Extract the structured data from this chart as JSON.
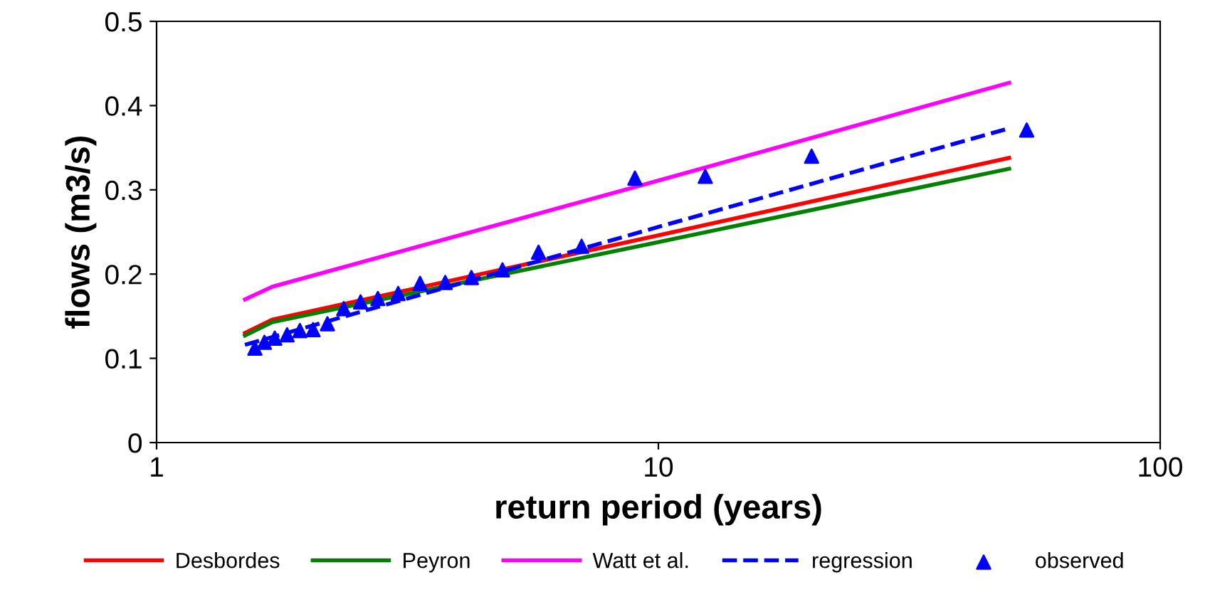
{
  "chart_data": {
    "type": "line",
    "xlabel": "return period (years)",
    "ylabel": "flows (m3/s)",
    "log": "x",
    "xlim": [
      1,
      100
    ],
    "xticks": [
      1,
      10,
      100
    ],
    "ylim": [
      0,
      0.5
    ],
    "yticks": [
      0,
      0.1,
      0.2,
      0.3,
      0.4,
      0.5
    ],
    "grid": false,
    "legend": "bottom",
    "series": [
      {
        "name": "Desbordes",
        "color": "#ff0000",
        "x": [
          1.5,
          1.7,
          10,
          50
        ],
        "values": [
          0.13,
          0.146,
          0.246,
          0.338
        ],
        "line_style": "solid"
      },
      {
        "name": "Peyron",
        "color": "#008000",
        "x": [
          1.5,
          1.7,
          10,
          50
        ],
        "values": [
          0.127,
          0.143,
          0.238,
          0.325
        ],
        "line_style": "solid"
      },
      {
        "name": "Watt et al.",
        "color": "#ff00ff",
        "x": [
          1.5,
          1.7,
          10,
          50
        ],
        "values": [
          0.17,
          0.185,
          0.311,
          0.427
        ],
        "line_style": "solid"
      },
      {
        "name": "regression",
        "color": "#0000ff",
        "x": [
          1.5,
          10,
          50
        ],
        "values": [
          0.116,
          0.256,
          0.373
        ],
        "line_style": "dashed"
      },
      {
        "name": "observed",
        "type": "scatter",
        "marker": "triangle",
        "color": "#0000ff",
        "x": [
          1.57,
          1.64,
          1.72,
          1.82,
          1.93,
          2.05,
          2.19,
          2.36,
          2.55,
          2.76,
          3.03,
          3.35,
          3.76,
          4.24,
          4.89,
          5.77,
          7.03,
          8.98,
          12.4,
          20.2,
          54.2
        ],
        "values": [
          0.112,
          0.119,
          0.124,
          0.128,
          0.133,
          0.134,
          0.141,
          0.159,
          0.167,
          0.171,
          0.177,
          0.189,
          0.19,
          0.196,
          0.205,
          0.226,
          0.233,
          0.314,
          0.316,
          0.34,
          0.371
        ]
      }
    ]
  }
}
